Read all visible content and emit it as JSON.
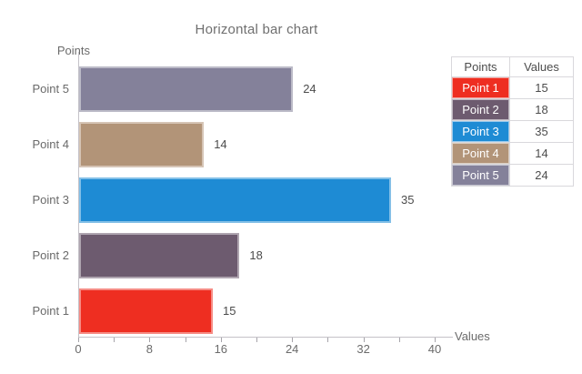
{
  "title": "Horizontal bar chart",
  "axes": {
    "x_label": "Values",
    "y_label": "Points"
  },
  "chart_data": {
    "type": "bar",
    "orientation": "horizontal",
    "title": "Horizontal bar chart",
    "xlabel": "Values",
    "ylabel": "Points",
    "categories": [
      "Point 1",
      "Point 2",
      "Point 3",
      "Point 4",
      "Point 5"
    ],
    "values": [
      15,
      18,
      35,
      14,
      24
    ],
    "colors": [
      "#ee2e21",
      "#6d5b6f",
      "#1e8bd4",
      "#b29478",
      "#84819a"
    ],
    "bar_order_top_to_bottom": [
      "Point 5",
      "Point 4",
      "Point 3",
      "Point 2",
      "Point 1"
    ],
    "xlim": [
      0,
      40
    ],
    "x_major_ticks": [
      0,
      8,
      16,
      24,
      32,
      40
    ],
    "x_minor_ticks": [
      4,
      12,
      20,
      28,
      36
    ],
    "grid": "off",
    "value_labels": "right-of-bar",
    "legend_position": "right-table"
  },
  "legend": {
    "header": [
      "Points",
      "Values"
    ],
    "rows": [
      {
        "label": "Point 1",
        "value": "15",
        "color": "#ee2e21"
      },
      {
        "label": "Point 2",
        "value": "18",
        "color": "#6d5b6f"
      },
      {
        "label": "Point 3",
        "value": "35",
        "color": "#1e8bd4"
      },
      {
        "label": "Point 4",
        "value": "14",
        "color": "#b29478"
      },
      {
        "label": "Point 5",
        "value": "24",
        "color": "#84819a"
      }
    ]
  }
}
